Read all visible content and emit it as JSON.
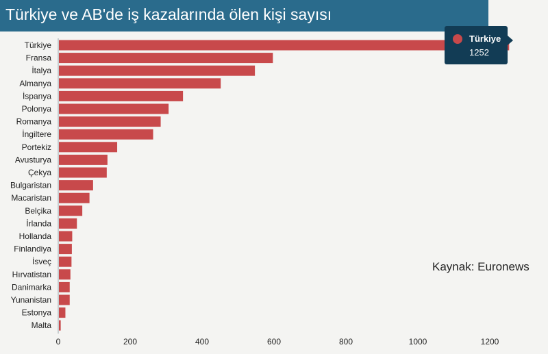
{
  "chart_data": {
    "type": "bar",
    "orientation": "horizontal",
    "title": "Türkiye ve AB'de iş kazalarında ölen kişi sayısı",
    "categories": [
      "Türkiye",
      "Fransa",
      "İtalya",
      "Almanya",
      "İspanya",
      "Polonya",
      "Romanya",
      "İngiltere",
      "Portekiz",
      "Avusturya",
      "Çekya",
      "Bulgaristan",
      "Macaristan",
      "Belçika",
      "İrlanda",
      "Hollanda",
      "Finlandiya",
      "İsveç",
      "Hırvatistan",
      "Danimarka",
      "Yunanistan",
      "Estonya",
      "Malta"
    ],
    "values": [
      1252,
      595,
      545,
      450,
      345,
      305,
      283,
      262,
      162,
      135,
      133,
      95,
      85,
      65,
      50,
      37,
      36,
      35,
      32,
      30,
      30,
      18,
      5
    ],
    "xlim": [
      0,
      1300
    ],
    "xticks": [
      0,
      200,
      400,
      600,
      800,
      1000,
      1200
    ],
    "bar_color": "#c8494b",
    "grid": false,
    "legend": "none"
  },
  "header": {
    "background": "#2a6b8c"
  },
  "source": {
    "text": "Kaynak: Euronews"
  },
  "tooltip": {
    "name": "Türkiye",
    "value": "1252",
    "background": "#123c55"
  }
}
